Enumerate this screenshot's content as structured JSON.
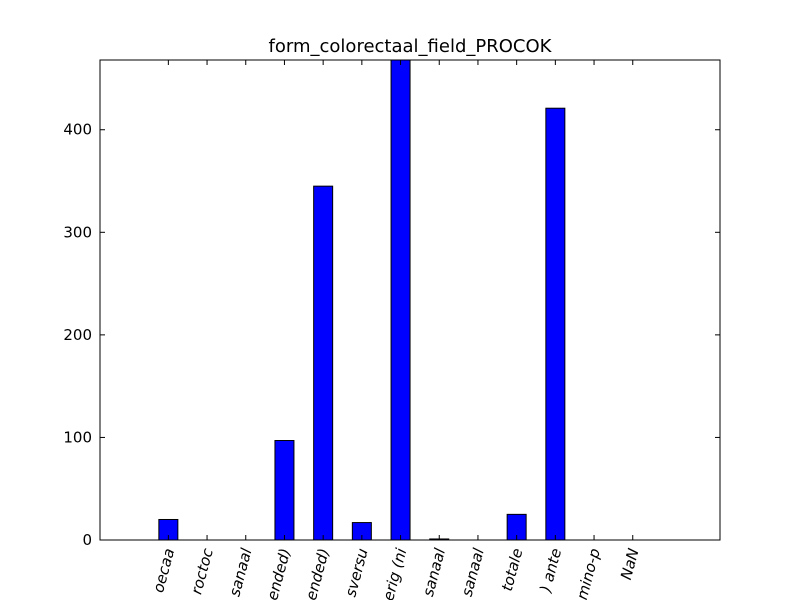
{
  "chart_data": {
    "type": "bar",
    "title": "form_colorectaal_field_PROCOK",
    "xlabel": "",
    "ylabel": "",
    "categories": [
      "oecaa",
      "roctoc",
      "sanaal",
      "ended)",
      "ended)",
      "sversu",
      "erig (ni",
      "sanaal",
      "sanaal",
      "totale",
      ") ante",
      "mino-p",
      "NaN"
    ],
    "values": [
      20,
      0,
      0,
      97,
      345,
      17,
      468,
      1,
      0,
      25,
      421,
      0,
      0
    ],
    "ylim": [
      0,
      468
    ],
    "yticks": [
      0,
      100,
      200,
      300,
      400
    ],
    "bar_color": "#0000ff",
    "grid": false
  }
}
